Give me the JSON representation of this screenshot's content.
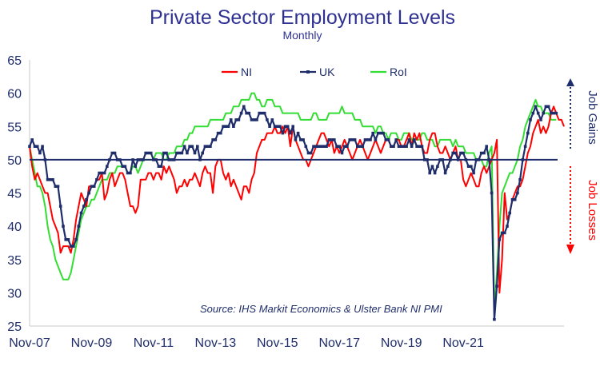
{
  "chart_data": {
    "type": "line",
    "title": "Private Sector Employment Levels",
    "subtitle": "Monthly",
    "xlabel": "",
    "ylabel": "",
    "ylim": [
      25,
      65
    ],
    "yticks": [
      25,
      30,
      35,
      40,
      45,
      50,
      55,
      60,
      65
    ],
    "xtick_labels": [
      "Nov-07",
      "Nov-09",
      "Nov-11",
      "Nov-13",
      "Nov-15",
      "Nov-17",
      "Nov-19",
      "Nov-21"
    ],
    "x_start": "Nov-07",
    "x_end": "Nov-21",
    "reference_line": 50,
    "grid": false,
    "legend_position": "top",
    "series": [
      {
        "name": "NI",
        "color": "#ff0000",
        "marker": "none",
        "values": [
          52,
          49,
          47,
          48,
          47,
          46,
          45,
          45,
          43,
          41,
          40,
          39,
          36,
          37,
          37,
          37,
          36,
          38,
          41,
          43,
          45,
          44,
          43,
          46,
          46,
          46,
          47,
          47,
          48,
          44,
          45,
          47,
          48,
          46,
          47,
          48,
          48,
          47,
          45,
          43,
          43,
          42,
          43,
          47,
          47,
          47,
          48,
          48,
          47,
          48,
          48,
          47,
          49,
          48,
          49,
          48,
          47,
          45,
          46,
          46,
          47,
          46,
          47,
          47,
          48,
          47,
          46,
          48,
          49,
          48,
          48,
          45,
          49,
          50,
          50,
          48,
          47,
          48,
          46,
          47,
          46,
          45,
          44,
          46,
          46,
          45,
          47,
          48,
          51,
          52,
          53,
          53,
          54,
          54,
          54,
          55,
          54,
          54,
          55,
          54,
          55,
          52,
          55,
          53,
          52,
          51,
          50,
          50,
          49,
          50,
          51,
          52,
          53,
          54,
          54,
          53,
          52,
          53,
          51,
          52,
          51,
          52,
          53,
          52,
          51,
          50,
          51,
          52,
          53,
          52,
          51,
          50,
          51,
          52,
          53,
          52,
          51,
          52,
          53,
          53,
          52,
          52,
          53,
          53,
          52,
          52,
          53,
          54,
          52,
          54,
          53,
          54,
          52,
          51,
          51,
          53,
          54,
          54,
          52,
          51,
          51,
          52,
          51,
          50,
          51,
          52,
          50,
          50,
          47,
          46,
          47,
          48,
          47,
          46,
          46,
          48,
          49,
          48,
          49,
          50,
          51,
          53,
          30,
          35,
          45,
          41,
          42,
          44,
          45,
          46,
          46,
          47,
          49,
          51,
          52,
          54,
          55,
          56,
          54,
          55,
          54,
          55,
          57,
          58,
          57,
          56,
          56,
          55
        ]
      },
      {
        "name": "UK",
        "color": "#1f2d6b",
        "marker": "square",
        "values": [
          52,
          53,
          52,
          52,
          51,
          52,
          50,
          47,
          47,
          47,
          46,
          46,
          43,
          40,
          38,
          38,
          37,
          37,
          38,
          40,
          42,
          43,
          44,
          45,
          46,
          46,
          47,
          48,
          48,
          48,
          49,
          50,
          51,
          51,
          50,
          50,
          49,
          49,
          48,
          48,
          50,
          49,
          50,
          50,
          50,
          51,
          51,
          51,
          50,
          50,
          49,
          49,
          51,
          51,
          50,
          50,
          50,
          51,
          51,
          51,
          52,
          51,
          52,
          52,
          51,
          52,
          50,
          51,
          52,
          52,
          52,
          53,
          53,
          54,
          54,
          55,
          55,
          55,
          56,
          55,
          56,
          56,
          57,
          58,
          57,
          57,
          56,
          56,
          56,
          57,
          57,
          57,
          56,
          55,
          56,
          55,
          55,
          55,
          54,
          55,
          55,
          54,
          55,
          53,
          54,
          53,
          53,
          52,
          51,
          51,
          52,
          52,
          52,
          52,
          52,
          52,
          53,
          53,
          53,
          52,
          52,
          51,
          52,
          52,
          53,
          53,
          53,
          52,
          52,
          52,
          53,
          53,
          53,
          54,
          53,
          54,
          54,
          54,
          53,
          53,
          52,
          52,
          53,
          52,
          52,
          52,
          52,
          53,
          52,
          53,
          52,
          52,
          52,
          50,
          50,
          48,
          49,
          48,
          49,
          50,
          50,
          48,
          49,
          50,
          51,
          51,
          50,
          51,
          51,
          50,
          49,
          49,
          48,
          50,
          50,
          51,
          51,
          52,
          50,
          45,
          26,
          31,
          38,
          39,
          39,
          40,
          42,
          44,
          44,
          45,
          47,
          50,
          52,
          54,
          56,
          57,
          58,
          57,
          56,
          57,
          58,
          58,
          57,
          57,
          57
        ]
      },
      {
        "name": "RoI",
        "color": "#33dd33",
        "marker": "none",
        "values": [
          52,
          50,
          48,
          46,
          46,
          45,
          43,
          40,
          38,
          37,
          35,
          34,
          33,
          32,
          32,
          32,
          33,
          35,
          37,
          39,
          41,
          42,
          43,
          43,
          44,
          44,
          45,
          46,
          47,
          47,
          47,
          48,
          48,
          48,
          49,
          49,
          49,
          49,
          48,
          48,
          49,
          49,
          48,
          49,
          50,
          50,
          50,
          50,
          50,
          51,
          51,
          51,
          50,
          50,
          51,
          51,
          51,
          52,
          52,
          52,
          53,
          53,
          54,
          54,
          55,
          55,
          55,
          55,
          55,
          55,
          56,
          56,
          56,
          56,
          56,
          56,
          57,
          57,
          57,
          58,
          58,
          58,
          59,
          59,
          59,
          59,
          60,
          60,
          59,
          59,
          58,
          58,
          59,
          59,
          59,
          58,
          58,
          58,
          57,
          57,
          57,
          57,
          57,
          57,
          57,
          56,
          56,
          56,
          56,
          56,
          57,
          57,
          56,
          56,
          56,
          56,
          57,
          57,
          57,
          57,
          57,
          58,
          57,
          57,
          57,
          57,
          56,
          56,
          56,
          55,
          55,
          55,
          55,
          55,
          54,
          55,
          55,
          54,
          54,
          53,
          54,
          54,
          54,
          53,
          53,
          54,
          54,
          54,
          53,
          53,
          53,
          53,
          54,
          54,
          53,
          53,
          53,
          52,
          52,
          53,
          53,
          53,
          53,
          53,
          52,
          53,
          52,
          52,
          52,
          51,
          51,
          51,
          51,
          50,
          50,
          50,
          49,
          49,
          51,
          52,
          27,
          33,
          40,
          45,
          46,
          47,
          48,
          48,
          49,
          50,
          52,
          53,
          55,
          56,
          57,
          58,
          59,
          58,
          58,
          57,
          57,
          57,
          56,
          56,
          56
        ]
      }
    ],
    "annotations": {
      "source": "Source: IHS Markit Economics & Ulster Bank NI PMI",
      "job_gains": "Job Gains",
      "job_losses": "Job Losses"
    },
    "colors": {
      "title": "#2e3192",
      "axis": "#1f2d6b",
      "gains": "#1f2d6b",
      "losses": "#ff0000"
    }
  }
}
